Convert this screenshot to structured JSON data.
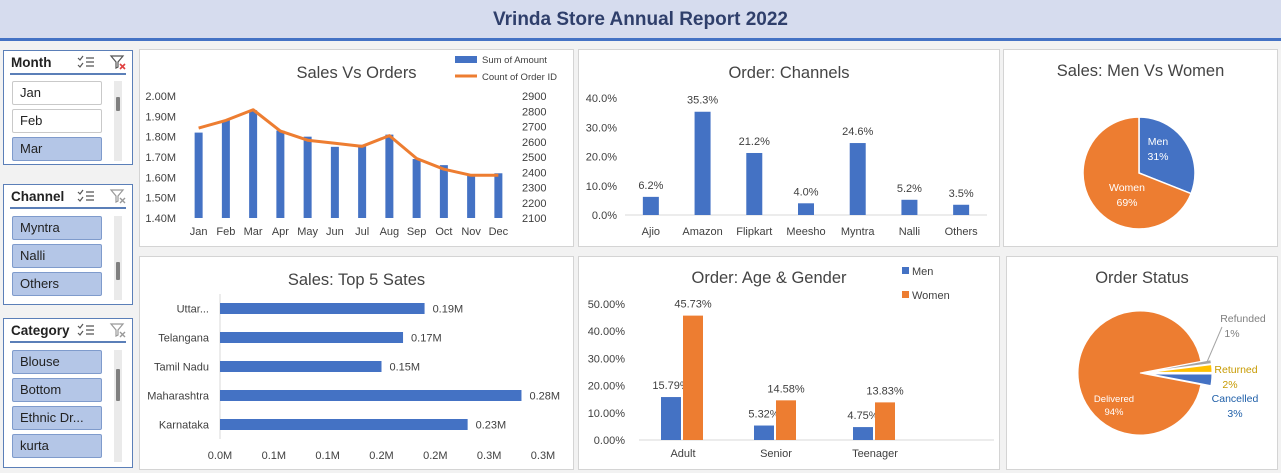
{
  "report_title": "Vrinda Store Annual Report 2022",
  "slicers": {
    "month": {
      "title": "Month",
      "items": [
        {
          "label": "Jan",
          "selected": false
        },
        {
          "label": "Feb",
          "selected": false
        },
        {
          "label": "Mar",
          "selected": true
        }
      ]
    },
    "channel": {
      "title": "Channel",
      "items": [
        {
          "label": "Myntra",
          "selected": true
        },
        {
          "label": "Nalli",
          "selected": true
        },
        {
          "label": "Others",
          "selected": true
        }
      ]
    },
    "category": {
      "title": "Category",
      "items": [
        {
          "label": "Blouse",
          "selected": true
        },
        {
          "label": "Bottom",
          "selected": true
        },
        {
          "label": "Ethnic Dr...",
          "selected": true
        },
        {
          "label": "kurta",
          "selected": true
        }
      ]
    }
  },
  "colors": {
    "blue": "#4472c4",
    "orange": "#ed7d31",
    "yellow": "#ffc000",
    "gray": "#a5a5a5"
  },
  "chart_data": [
    {
      "id": "sales_vs_orders",
      "type": "bar+line",
      "title": "Sales Vs Orders",
      "categories": [
        "Jan",
        "Feb",
        "Mar",
        "Apr",
        "May",
        "Jun",
        "Jul",
        "Aug",
        "Sep",
        "Oct",
        "Nov",
        "Dec"
      ],
      "series": [
        {
          "name": "Sum of Amount",
          "type": "bar",
          "axis": "left",
          "values": [
            1.82,
            1.88,
            1.93,
            1.83,
            1.8,
            1.75,
            1.76,
            1.81,
            1.69,
            1.66,
            1.61,
            1.62
          ]
        },
        {
          "name": "Count of Order ID",
          "type": "line",
          "axis": "right",
          "values": [
            2690,
            2740,
            2810,
            2670,
            2610,
            2590,
            2570,
            2640,
            2490,
            2420,
            2380,
            2380
          ]
        }
      ],
      "y_left": {
        "min": 1.4,
        "max": 2.0,
        "ticks": [
          "1.40M",
          "1.50M",
          "1.60M",
          "1.70M",
          "1.80M",
          "1.90M",
          "2.00M"
        ]
      },
      "y_right": {
        "min": 2100,
        "max": 2900,
        "ticks": [
          "2100",
          "2200",
          "2300",
          "2400",
          "2500",
          "2600",
          "2700",
          "2800",
          "2900"
        ]
      },
      "legend": "top-right"
    },
    {
      "id": "order_channels",
      "type": "bar",
      "title": "Order: Channels",
      "categories": [
        "Ajio",
        "Amazon",
        "Flipkart",
        "Meesho",
        "Myntra",
        "Nalli",
        "Others"
      ],
      "values": [
        6.2,
        35.3,
        21.2,
        4.0,
        24.6,
        5.2,
        3.5
      ],
      "data_labels": [
        "6.2%",
        "35.3%",
        "21.2%",
        "4.0%",
        "24.6%",
        "5.2%",
        "3.5%"
      ],
      "ylim": [
        0,
        40
      ],
      "y_ticks": [
        "0.0%",
        "10.0%",
        "20.0%",
        "30.0%",
        "40.0%"
      ]
    },
    {
      "id": "sales_men_women",
      "type": "pie",
      "title": "Sales: Men Vs Women",
      "slices": [
        {
          "label": "Men",
          "value": 31,
          "text": "31%"
        },
        {
          "label": "Women",
          "value": 69,
          "text": "69%"
        }
      ]
    },
    {
      "id": "top5_states",
      "type": "bar-horizontal",
      "title": "Sales: Top 5 Sates",
      "categories": [
        "Uttar...",
        "Telangana",
        "Tamil Nadu",
        "Maharashtra",
        "Karnataka"
      ],
      "values": [
        0.19,
        0.17,
        0.15,
        0.28,
        0.23
      ],
      "data_labels": [
        "0.19M",
        "0.17M",
        "0.15M",
        "0.28M",
        "0.23M"
      ],
      "xlim": [
        0,
        0.3
      ],
      "x_ticks": [
        "0.0M",
        "0.1M",
        "0.1M",
        "0.2M",
        "0.2M",
        "0.3M",
        "0.3M"
      ]
    },
    {
      "id": "age_gender",
      "type": "bar",
      "title": "Order: Age & Gender",
      "categories": [
        "Adult",
        "Senior",
        "Teenager"
      ],
      "series": [
        {
          "name": "Men",
          "values": [
            15.79,
            5.32,
            4.75
          ],
          "labels": [
            "15.79%",
            "5.32%",
            "4.75%"
          ]
        },
        {
          "name": "Women",
          "values": [
            45.73,
            14.58,
            13.83
          ],
          "labels": [
            "45.73%",
            "14.58%",
            "13.83%"
          ]
        }
      ],
      "ylim": [
        0,
        50
      ],
      "y_ticks": [
        "0.00%",
        "10.00%",
        "20.00%",
        "30.00%",
        "40.00%",
        "50.00%"
      ],
      "legend": "top-right"
    },
    {
      "id": "order_status",
      "type": "pie",
      "title": "Order Status",
      "slices": [
        {
          "label": "Delivered",
          "value": 94,
          "text": "94%"
        },
        {
          "label": "Refunded",
          "value": 1,
          "text": "1%"
        },
        {
          "label": "Returned",
          "value": 2,
          "text": "2%"
        },
        {
          "label": "Cancelled",
          "value": 3,
          "text": "3%"
        }
      ]
    }
  ]
}
